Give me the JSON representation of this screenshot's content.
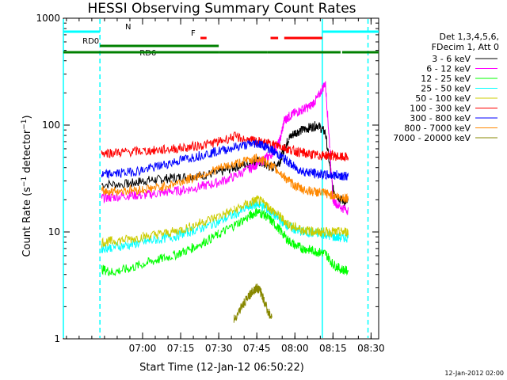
{
  "chart_data": {
    "type": "line",
    "title": "HESSI Observing Summary Count Rates",
    "xlabel": "Start Time (12-Jan-12 06:50:22)",
    "ylabel_main": "Count Rate (s",
    "ylabel_exp1": "−1",
    "ylabel_mid": " detector",
    "ylabel_exp2": "−1",
    "ylabel_end": ")",
    "ylog": true,
    "ylim": [
      1,
      1000
    ],
    "xlim": [
      6.48,
      8.55
    ],
    "x_ticks": [
      {
        "v": 7.0,
        "label": "07:00"
      },
      {
        "v": 7.25,
        "label": "07:15"
      },
      {
        "v": 7.5,
        "label": "07:30"
      },
      {
        "v": 7.75,
        "label": "07:45"
      },
      {
        "v": 8.0,
        "label": "08:00"
      },
      {
        "v": 8.25,
        "label": "08:15"
      },
      {
        "v": 8.5,
        "label": "08:30"
      }
    ],
    "y_ticks": [
      {
        "v": 1,
        "label": "1"
      },
      {
        "v": 10,
        "label": "10"
      },
      {
        "v": 100,
        "label": "100"
      },
      {
        "v": 1000,
        "label": "1000"
      }
    ],
    "legend_header": [
      "Det 1,3,4,5,6,",
      "FDecim 1, Att 0"
    ],
    "legend_placement": "right",
    "series": [
      {
        "name": "3 - 6 keV",
        "color": "#000000",
        "x": [
          6.58,
          6.72,
          6.73,
          6.9,
          7.0,
          7.1,
          7.2,
          7.3,
          7.4,
          7.5,
          7.6,
          7.7,
          7.75,
          7.8,
          7.85,
          7.9,
          7.93,
          7.96,
          8.0,
          8.05,
          8.1,
          8.15,
          8.2,
          8.25,
          8.3,
          8.35,
          8.45,
          8.55
        ],
        "y": [
          null,
          null,
          28,
          28,
          30,
          31,
          32,
          33,
          34,
          36,
          40,
          44,
          46,
          43,
          40,
          45,
          60,
          75,
          85,
          90,
          95,
          100,
          85,
          25,
          20,
          19,
          null,
          null
        ]
      },
      {
        "name": "6 - 12 keV",
        "color": "#ff00ff",
        "x": [
          6.72,
          6.73,
          6.8,
          6.9,
          7.0,
          7.1,
          7.2,
          7.3,
          7.4,
          7.5,
          7.6,
          7.7,
          7.75,
          7.8,
          7.85,
          7.9,
          7.93,
          7.96,
          8.0,
          8.05,
          8.1,
          8.15,
          8.2,
          8.23,
          8.25,
          8.3,
          8.35
        ],
        "y": [
          null,
          21,
          21,
          22,
          22,
          23,
          24,
          25,
          27,
          29,
          33,
          39,
          43,
          48,
          54,
          70,
          110,
          120,
          130,
          140,
          150,
          180,
          250,
          60,
          20,
          17,
          16
        ]
      },
      {
        "name": "12 - 25 keV",
        "color": "#00ff00",
        "x": [
          6.72,
          6.73,
          6.8,
          6.9,
          7.0,
          7.1,
          7.2,
          7.3,
          7.4,
          7.5,
          7.6,
          7.7,
          7.75,
          7.8,
          7.85,
          7.9,
          7.95,
          8.0,
          8.05,
          8.1,
          8.15,
          8.2,
          8.25,
          8.3,
          8.35
        ],
        "y": [
          null,
          4.5,
          4.2,
          4.5,
          5,
          5.5,
          6,
          6.8,
          8,
          9.5,
          11.5,
          14,
          15.5,
          14.5,
          12.5,
          10.5,
          8.5,
          7.5,
          7,
          6.8,
          6.5,
          6.3,
          5,
          4.5,
          4.3
        ]
      },
      {
        "name": "25 - 50 keV",
        "color": "#00ffff",
        "x": [
          6.72,
          6.73,
          6.8,
          6.9,
          7.0,
          7.1,
          7.2,
          7.3,
          7.4,
          7.5,
          7.6,
          7.7,
          7.75,
          7.8,
          7.85,
          7.9,
          7.95,
          8.0,
          8.05,
          8.1,
          8.15,
          8.2,
          8.25,
          8.3,
          8.35
        ],
        "y": [
          null,
          7,
          7.2,
          7.5,
          8,
          8.5,
          9,
          10,
          11,
          12.5,
          14.5,
          17,
          18.5,
          17,
          15,
          13,
          11.5,
          10.5,
          10,
          9.8,
          9.7,
          9.5,
          9,
          8.8,
          8.8
        ]
      },
      {
        "name": "50 - 100 keV",
        "color": "#cccc00",
        "x": [
          6.72,
          6.73,
          6.8,
          6.9,
          7.0,
          7.1,
          7.2,
          7.3,
          7.4,
          7.5,
          7.6,
          7.7,
          7.75,
          7.8,
          7.85,
          7.9,
          7.95,
          8.0,
          8.05,
          8.1,
          8.15,
          8.2,
          8.25,
          8.3,
          8.35
        ],
        "y": [
          null,
          8,
          8.2,
          8.5,
          9,
          9.5,
          10,
          11,
          12.5,
          14,
          16,
          18.5,
          20,
          18.5,
          16,
          14,
          12,
          11,
          10.5,
          10.2,
          10,
          10,
          10,
          10,
          10
        ]
      },
      {
        "name": "100 - 300 keV",
        "color": "#ff0000",
        "x": [
          6.72,
          6.73,
          6.8,
          6.9,
          7.0,
          7.1,
          7.2,
          7.3,
          7.4,
          7.5,
          7.6,
          7.7,
          7.75,
          7.8,
          7.85,
          7.9,
          7.95,
          8.0,
          8.05,
          8.1,
          8.15,
          8.2,
          8.25,
          8.3,
          8.35
        ],
        "y": [
          null,
          55,
          55,
          56,
          57,
          58,
          60,
          62,
          65,
          70,
          78,
          72,
          70,
          68,
          66,
          64,
          60,
          57,
          55,
          53,
          52,
          52,
          52,
          50,
          50
        ]
      },
      {
        "name": "300 - 800 keV",
        "color": "#0000ff",
        "x": [
          6.72,
          6.73,
          6.8,
          6.9,
          7.0,
          7.1,
          7.2,
          7.3,
          7.4,
          7.5,
          7.6,
          7.7,
          7.75,
          7.8,
          7.85,
          7.9,
          7.95,
          8.0,
          8.05,
          8.1,
          8.15,
          8.2,
          8.25,
          8.3,
          8.35
        ],
        "y": [
          null,
          34,
          35,
          36,
          38,
          41,
          45,
          49,
          53,
          57,
          62,
          66,
          68,
          64,
          58,
          52,
          46,
          40,
          37,
          36,
          35,
          34,
          34,
          34,
          33
        ]
      },
      {
        "name": "800 - 7000 keV",
        "color": "#ff8800",
        "x": [
          6.72,
          6.73,
          6.8,
          6.9,
          7.0,
          7.1,
          7.2,
          7.3,
          7.4,
          7.5,
          7.6,
          7.7,
          7.75,
          7.8,
          7.85,
          7.9,
          7.95,
          8.0,
          8.05,
          8.1,
          8.15,
          8.2,
          8.25,
          8.3,
          8.35
        ],
        "y": [
          null,
          24,
          24,
          24.5,
          25,
          26,
          28,
          31,
          35,
          39,
          43,
          47,
          49,
          46,
          41,
          36,
          31,
          27,
          25,
          24,
          23.5,
          23,
          22,
          21,
          21
        ]
      },
      {
        "name": "7000 - 20000 keV",
        "color": "#888800",
        "x": [
          7.59,
          7.6,
          7.65,
          7.7,
          7.72,
          7.75,
          7.78,
          7.8,
          7.85,
          7.86
        ],
        "y": [
          null,
          1.5,
          2.0,
          2.5,
          2.8,
          3.0,
          2.7,
          2.2,
          1.5,
          null
        ]
      }
    ],
    "bars": [
      {
        "color": "#00ffff",
        "y": 40,
        "start": 6.48,
        "end": 6.72,
        "label": "N"
      },
      {
        "color": "#00ffff",
        "y": 40,
        "start": 8.18,
        "end": 8.55,
        "label": ""
      },
      {
        "color": "#ff0000",
        "y": 48,
        "start": 7.38,
        "end": 7.42,
        "label": "F"
      },
      {
        "color": "#ff0000",
        "y": 48,
        "start": 7.84,
        "end": 7.89,
        "label": ""
      },
      {
        "color": "#ff0000",
        "y": 48,
        "start": 7.93,
        "end": 8.18,
        "label": ""
      },
      {
        "color": "#008000",
        "y": 58,
        "start": 6.72,
        "end": 7.0,
        "label": "RD0"
      },
      {
        "color": "#008000",
        "y": 58,
        "start": 6.96,
        "end": 7.5,
        "label": "RD6"
      },
      {
        "color": "#008000",
        "y": 66,
        "start": 6.48,
        "end": 7.5,
        "label": ""
      },
      {
        "color": "#008000",
        "y": 66,
        "start": 7.5,
        "end": 7.82,
        "label": ""
      },
      {
        "color": "#008000",
        "y": 66,
        "start": 7.82,
        "end": 8.3,
        "label": ""
      },
      {
        "color": "#008000",
        "y": 66,
        "start": 8.31,
        "end": 8.55,
        "label": ""
      }
    ],
    "vlines": [
      {
        "x": 6.48,
        "color": "#00ffff",
        "dashed": false
      },
      {
        "x": 6.72,
        "color": "#00ffff",
        "dashed": true
      },
      {
        "x": 8.18,
        "color": "#00ffff",
        "dashed": false
      },
      {
        "x": 8.48,
        "color": "#00ffff",
        "dashed": true
      }
    ],
    "footer": "12-Jan-2012 02:00"
  }
}
